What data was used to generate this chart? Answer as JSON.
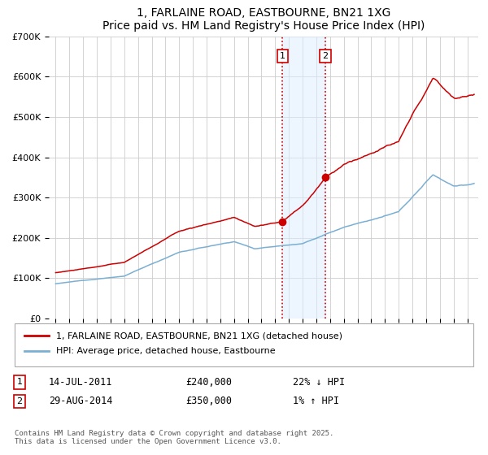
{
  "title": "1, FARLAINE ROAD, EASTBOURNE, BN21 1XG",
  "subtitle": "Price paid vs. HM Land Registry's House Price Index (HPI)",
  "ylim": [
    0,
    700000
  ],
  "yticks": [
    0,
    100000,
    200000,
    300000,
    400000,
    500000,
    600000,
    700000
  ],
  "ytick_labels": [
    "£0",
    "£100K",
    "£200K",
    "£300K",
    "£400K",
    "£500K",
    "£600K",
    "£700K"
  ],
  "line1_color": "#cc0000",
  "line2_color": "#7aafd4",
  "marker1_year": 2011.54,
  "marker2_year": 2014.66,
  "marker1_price": 240000,
  "marker2_price": 350000,
  "shade_color": "#ddeeff",
  "shade_alpha": 0.5,
  "vline_color": "#cc0000",
  "vline_style": ":",
  "legend_line1": "1, FARLAINE ROAD, EASTBOURNE, BN21 1XG (detached house)",
  "legend_line2": "HPI: Average price, detached house, Eastbourne",
  "annotation1_label": "1",
  "annotation2_label": "2",
  "note1_box": "1",
  "note1_date": "14-JUL-2011",
  "note1_price": "£240,000",
  "note1_hpi": "22% ↓ HPI",
  "note2_box": "2",
  "note2_date": "29-AUG-2014",
  "note2_price": "£350,000",
  "note2_hpi": "1% ↑ HPI",
  "footer": "Contains HM Land Registry data © Crown copyright and database right 2025.\nThis data is licensed under the Open Government Licence v3.0.",
  "background_color": "#ffffff",
  "grid_color": "#cccccc"
}
